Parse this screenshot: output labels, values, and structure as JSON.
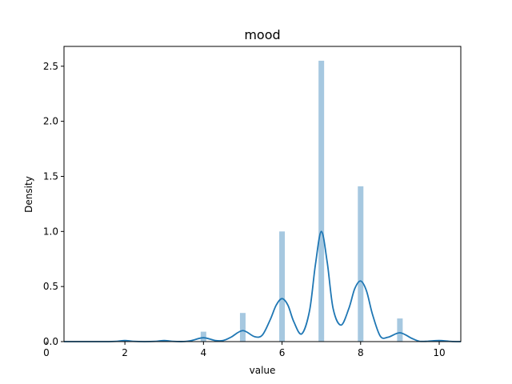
{
  "chart_data": {
    "type": "bar",
    "title": "mood",
    "xlabel": "value",
    "ylabel": "Density",
    "xlim": [
      0.45,
      10.55
    ],
    "ylim": [
      0,
      2.68
    ],
    "xticks": [
      "0",
      "2",
      "4",
      "6",
      "8",
      "10"
    ],
    "yticks": [
      "0.0",
      "0.5",
      "1.0",
      "1.5",
      "2.0",
      "2.5"
    ],
    "grid": false,
    "colors": {
      "histogram": "#a6c8e0",
      "kde": "#1f77b4"
    },
    "series": [
      {
        "type": "bar",
        "x": [
          2,
          3,
          4,
          5,
          6,
          7,
          8,
          9,
          10
        ],
        "values": [
          0.01,
          0.01,
          0.09,
          0.26,
          1.0,
          2.55,
          1.41,
          0.21,
          0.01
        ]
      },
      {
        "type": "line",
        "x": [
          0.45,
          1.0,
          1.5,
          1.8,
          2.0,
          2.2,
          2.5,
          2.8,
          3.0,
          3.2,
          3.5,
          3.7,
          4.0,
          4.3,
          4.5,
          4.7,
          5.0,
          5.3,
          5.5,
          5.7,
          5.85,
          6.0,
          6.15,
          6.3,
          6.5,
          6.7,
          6.85,
          7.0,
          7.15,
          7.3,
          7.5,
          7.7,
          7.85,
          8.0,
          8.15,
          8.3,
          8.5,
          8.7,
          9.0,
          9.3,
          9.5,
          9.7,
          10.0,
          10.3,
          10.55
        ],
        "values": [
          0.0,
          0.0,
          0.0,
          0.003,
          0.01,
          0.003,
          0.0,
          0.003,
          0.01,
          0.003,
          0.001,
          0.01,
          0.035,
          0.01,
          0.01,
          0.04,
          0.1,
          0.045,
          0.06,
          0.2,
          0.33,
          0.39,
          0.33,
          0.18,
          0.07,
          0.28,
          0.7,
          1.0,
          0.72,
          0.3,
          0.15,
          0.3,
          0.48,
          0.55,
          0.46,
          0.25,
          0.05,
          0.04,
          0.08,
          0.03,
          0.003,
          0.003,
          0.01,
          0.002,
          0.0
        ]
      }
    ]
  }
}
